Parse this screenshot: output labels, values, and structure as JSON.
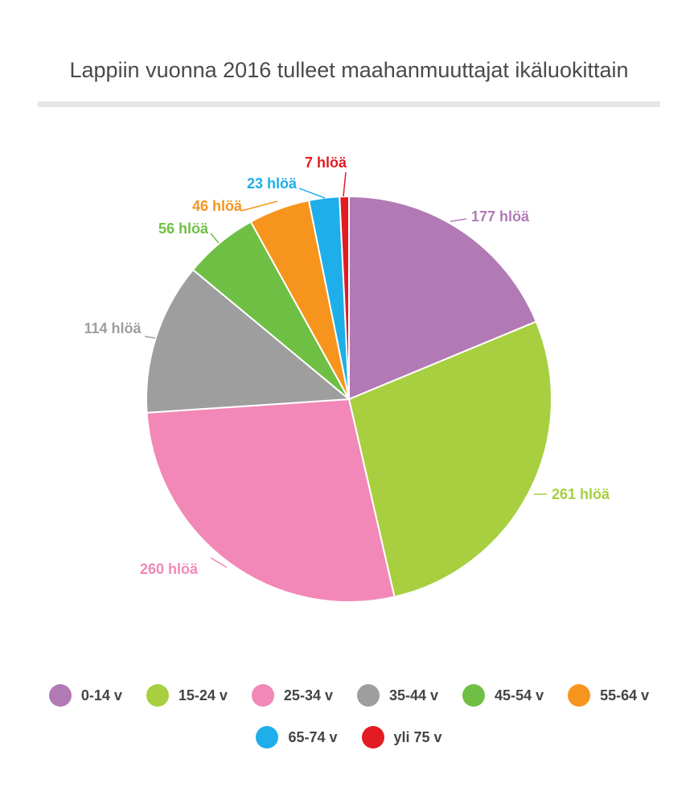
{
  "chart_data": {
    "type": "pie",
    "title": "Lappiin vuonna 2016 tulleet maahanmuuttajat ikäluokittain",
    "categories": [
      "0-14 v",
      "15-24 v",
      "25-34 v",
      "35-44 v",
      "45-54 v",
      "55-64 v",
      "65-74 v",
      "yli 75 v"
    ],
    "values": [
      177,
      261,
      260,
      114,
      56,
      46,
      23,
      7
    ],
    "data_labels": [
      "177 hlöä",
      "261 hlöä",
      "260 hlöä",
      "114 hlöä",
      "56 hlöä",
      "46 hlöä",
      "23 hlöä",
      "7 hlöä"
    ],
    "colors": [
      "#b27ab4",
      "#a7cf3f",
      "#f288b7",
      "#9e9e9e",
      "#6fbf44",
      "#f7941d",
      "#1eaeea",
      "#e31b23"
    ],
    "legend_position": "bottom"
  }
}
